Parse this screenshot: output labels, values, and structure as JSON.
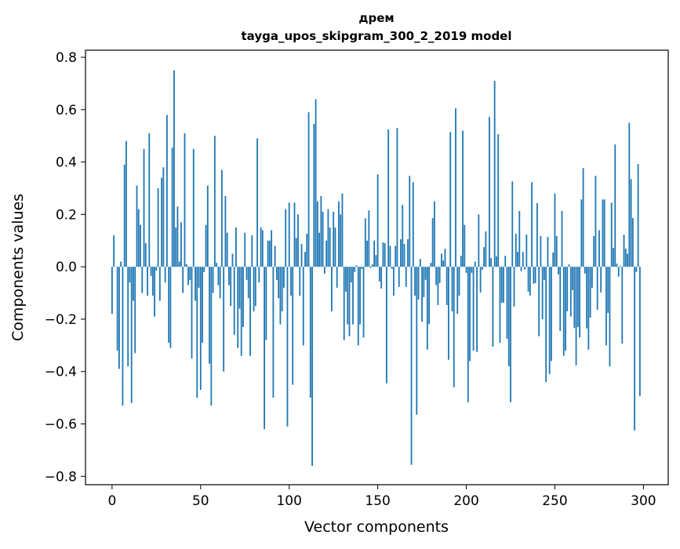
{
  "chart_data": {
    "type": "bar",
    "title": "дрем",
    "subtitle": "tayga_upos_skipgram_300_2_2019 model",
    "xlabel": "Vector components",
    "ylabel": "Components values",
    "xlim": [
      -15,
      314
    ],
    "ylim": [
      -0.832,
      0.827
    ],
    "xticks": [
      0,
      50,
      100,
      150,
      200,
      250,
      300
    ],
    "xtick_labels": [
      "0",
      "50",
      "100",
      "150",
      "200",
      "250",
      "300"
    ],
    "yticks": [
      -0.8,
      -0.6,
      -0.4,
      -0.2,
      0.0,
      0.2,
      0.4,
      0.6,
      0.8
    ],
    "ytick_labels": [
      "−0.8",
      "−0.6",
      "−0.4",
      "−0.2",
      "0.0",
      "0.2",
      "0.4",
      "0.6",
      "0.8"
    ],
    "grid": false,
    "bar_color": "#1f77b4",
    "values": [
      -0.18,
      0.12,
      0.0,
      -0.32,
      -0.39,
      0.02,
      -0.53,
      0.39,
      0.48,
      -0.38,
      -0.06,
      -0.52,
      -0.13,
      -0.33,
      0.31,
      0.22,
      0.16,
      -0.1,
      0.45,
      0.09,
      -0.11,
      0.51,
      -0.035,
      -0.11,
      -0.19,
      -0.015,
      0.3,
      -0.13,
      0.34,
      0.38,
      -0.06,
      0.58,
      -0.29,
      -0.31,
      0.455,
      0.75,
      0.15,
      0.23,
      0.02,
      0.17,
      -0.1,
      0.51,
      0.01,
      -0.07,
      -0.05,
      -0.35,
      0.45,
      -0.13,
      -0.5,
      -0.08,
      -0.47,
      -0.29,
      -0.02,
      0.16,
      0.31,
      -0.37,
      -0.53,
      -0.1,
      0.5,
      0.015,
      -0.07,
      -0.12,
      0.37,
      -0.4,
      0.27,
      0.13,
      -0.07,
      -0.15,
      0.05,
      -0.26,
      0.15,
      -0.31,
      -0.16,
      -0.34,
      -0.23,
      0.13,
      -0.05,
      -0.12,
      -0.34,
      0.12,
      -0.17,
      -0.15,
      0.49,
      -0.06,
      0.15,
      0.14,
      -0.62,
      -0.28,
      0.1,
      0.1,
      0.14,
      -0.5,
      0.08,
      -0.05,
      -0.12,
      -0.22,
      -0.17,
      -0.08,
      0.22,
      -0.61,
      0.245,
      -0.11,
      -0.45,
      0.245,
      0.11,
      0.2,
      -0.11,
      0.087,
      -0.3,
      0.057,
      0.126,
      0.59,
      -0.5,
      -0.76,
      0.545,
      0.64,
      0.25,
      0.13,
      0.27,
      0.21,
      -0.026,
      0.1,
      0.22,
      0.15,
      -0.17,
      0.21,
      0.15,
      -0.08,
      0.25,
      0.2,
      0.28,
      -0.28,
      -0.095,
      -0.22,
      -0.265,
      -0.06,
      -0.22,
      -0.02,
      0.006,
      -0.3,
      -0.22,
      -0.008,
      -0.27,
      0.185,
      0.1,
      0.215,
      -0.005,
      0.009,
      0.1,
      0.045,
      0.353,
      -0.056,
      -0.083,
      0.093,
      0.09,
      -0.445,
      0.524,
      0.08,
      -0.008,
      -0.11,
      0.08,
      0.53,
      -0.077,
      0.105,
      0.236,
      0.087,
      -0.077,
      0.105,
      0.347,
      -0.756,
      0.323,
      -0.11,
      -0.565,
      -0.125,
      0.03,
      -0.21,
      -0.116,
      -0.05,
      -0.316,
      -0.218,
      0.015,
      0.186,
      0.25,
      -0.07,
      -0.146,
      -0.062,
      0.05,
      0.024,
      0.069,
      -0.146,
      -0.355,
      0.515,
      -0.17,
      -0.46,
      0.605,
      -0.18,
      -0.11,
      0.042,
      0.52,
      0.16,
      -0.023,
      -0.517,
      -0.36,
      -0.023,
      -0.32,
      0.02,
      -0.325,
      0.2,
      -0.098,
      -0.011,
      0.075,
      0.135,
      0.0,
      0.572,
      0.033,
      -0.305,
      0.71,
      0.04,
      0.506,
      -0.29,
      -0.137,
      -0.137,
      0.042,
      -0.275,
      -0.38,
      -0.517,
      0.326,
      -0.152,
      0.126,
      0.057,
      0.213,
      -0.017,
      0.057,
      -0.011,
      0.123,
      -0.095,
      -0.11,
      0.323,
      -0.065,
      -0.062,
      0.243,
      -0.265,
      0.117,
      -0.2,
      -0.05,
      -0.44,
      0.114,
      -0.41,
      -0.36,
      0.054,
      0.28,
      0.117,
      -0.029,
      -0.245,
      0.213,
      -0.34,
      -0.32,
      -0.17,
      0.009,
      -0.19,
      -0.089,
      -0.233,
      -0.376,
      -0.23,
      -0.27,
      0.257,
      0.377,
      -0.026,
      -0.235,
      -0.316,
      -0.194,
      -0.08,
      0.117,
      0.347,
      -0.164,
      0.14,
      -0.098,
      0.257,
      0.257,
      -0.3,
      -0.176,
      -0.38,
      0.245,
      0.072,
      0.467,
      0.012,
      -0.038,
      0.003,
      -0.293,
      0.123,
      0.069,
      0.05,
      0.55,
      0.335,
      0.186,
      -0.625,
      -0.02,
      0.392,
      -0.493
    ]
  }
}
